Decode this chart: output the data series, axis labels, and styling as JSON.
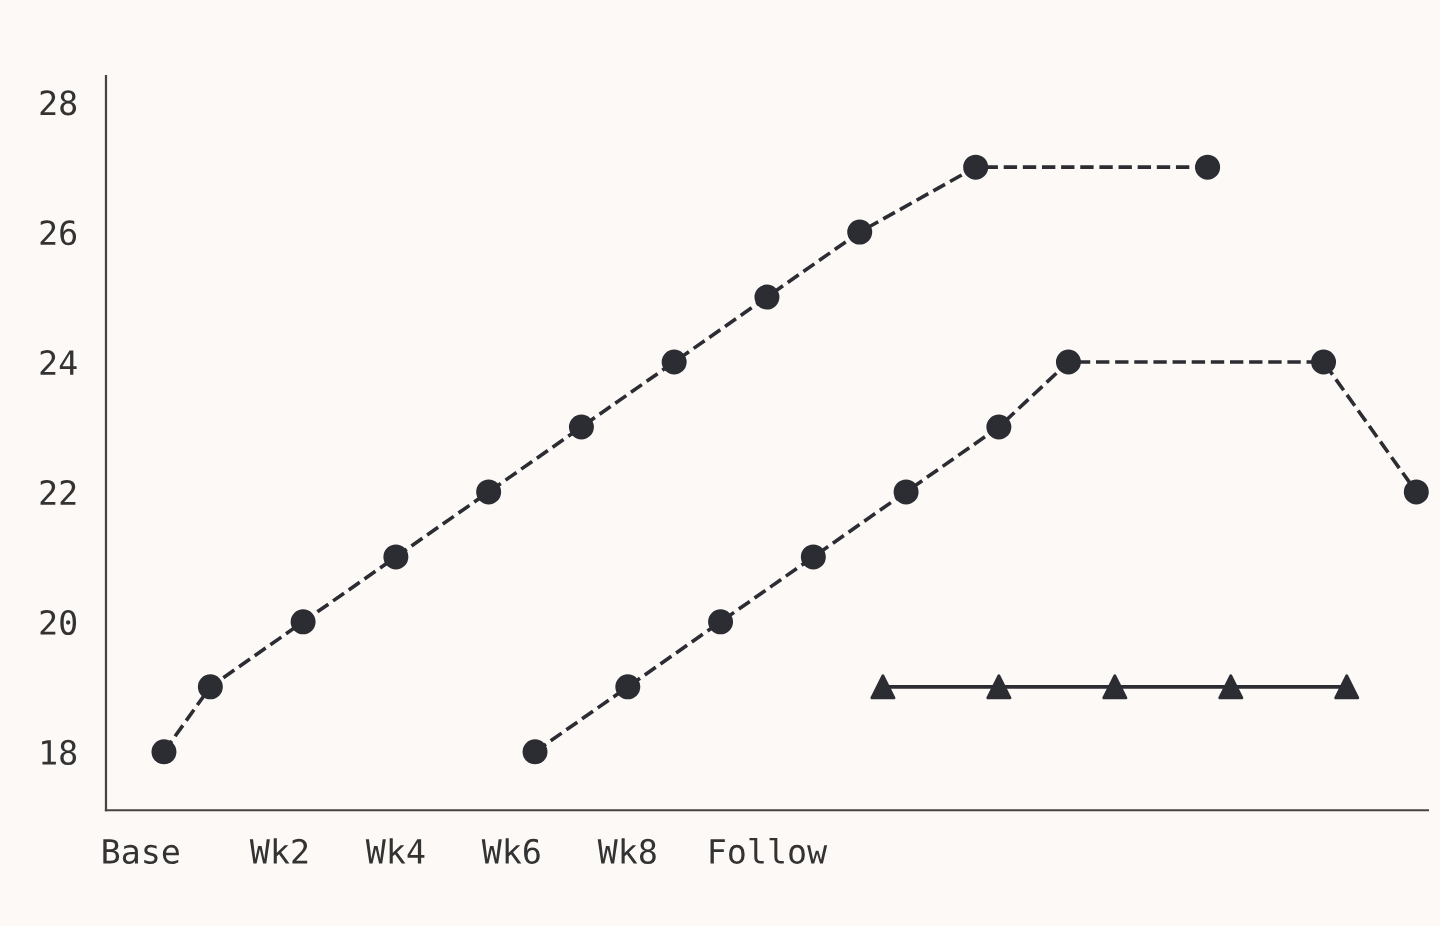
{
  "chart_data": {
    "type": "line",
    "categories": [
      null,
      "Base",
      null,
      null,
      null,
      null,
      null,
      "Wk2",
      null,
      null,
      null,
      null,
      "Wk4",
      null,
      null,
      null,
      null,
      "Wk6",
      null,
      null,
      null,
      null,
      "Wk8",
      null,
      null,
      null,
      null,
      null,
      "Follow",
      null,
      null,
      null,
      null,
      null,
      null,
      null,
      null,
      null,
      null,
      null,
      null,
      null,
      null,
      null,
      null,
      null,
      null,
      null,
      null,
      null,
      null,
      null,
      null,
      null,
      null,
      null,
      null
    ],
    "ylim": [
      17.1,
      28.4
    ],
    "yticks": [
      18,
      20,
      22,
      24,
      26,
      28
    ],
    "grid": false,
    "legend": false,
    "series": [
      {
        "color": "#2b2d33",
        "marker": "circle",
        "line_style": "dashed",
        "values": [
          null,
          null,
          18,
          null,
          19,
          null,
          null,
          null,
          20,
          null,
          null,
          null,
          21,
          null,
          null,
          null,
          22,
          null,
          null,
          null,
          23,
          null,
          null,
          null,
          24,
          null,
          null,
          null,
          25,
          null,
          null,
          null,
          26,
          null,
          null,
          null,
          null,
          27,
          null,
          null,
          null,
          null,
          null,
          null,
          null,
          null,
          null,
          27,
          null,
          null,
          null,
          null,
          null,
          null,
          null,
          null,
          null
        ]
      },
      {
        "color": "#2b2d33",
        "marker": "circle",
        "line_style": "dashed",
        "values": [
          null,
          null,
          null,
          null,
          null,
          null,
          null,
          null,
          null,
          null,
          null,
          null,
          null,
          null,
          null,
          null,
          null,
          null,
          18,
          null,
          null,
          null,
          19,
          null,
          null,
          null,
          20,
          null,
          null,
          null,
          21,
          null,
          null,
          null,
          22,
          null,
          null,
          null,
          23,
          null,
          null,
          24,
          null,
          null,
          null,
          null,
          null,
          null,
          null,
          null,
          null,
          null,
          24,
          null,
          null,
          null,
          22
        ]
      },
      {
        "color": "#2b2d33",
        "marker": "triangle",
        "line_style": "solid",
        "values": [
          null,
          null,
          null,
          null,
          null,
          null,
          null,
          null,
          null,
          null,
          null,
          null,
          null,
          null,
          null,
          null,
          null,
          null,
          null,
          null,
          null,
          null,
          null,
          null,
          null,
          null,
          null,
          null,
          null,
          null,
          null,
          null,
          null,
          19,
          null,
          null,
          null,
          null,
          19,
          null,
          null,
          null,
          null,
          19,
          null,
          null,
          null,
          null,
          19,
          null,
          null,
          null,
          null,
          19,
          null,
          null,
          null
        ]
      }
    ]
  }
}
